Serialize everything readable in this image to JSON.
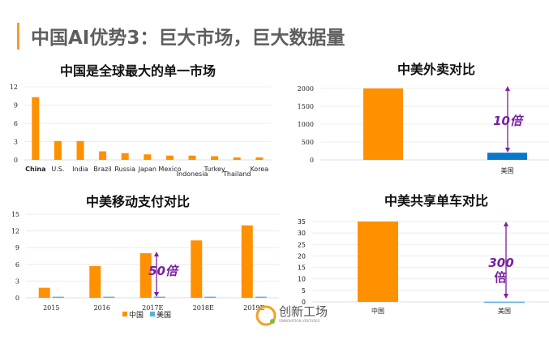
{
  "slide": {
    "title": "中国AI优势3：巨大市场，巨大数据量",
    "accent_color": "#f0a030"
  },
  "logo": {
    "name": "创新工场",
    "tagline": "SINNOVATION VENTURES"
  },
  "colors": {
    "china": "#ff9000",
    "us_dark": "#0a78c8",
    "us_light": "#5aaee0",
    "annotation": "#7a1fa2"
  },
  "chart_data": [
    {
      "type": "bar",
      "title": "中国是全球最大的单一市场",
      "categories": [
        "China",
        "U.S.",
        "India",
        "Brazil",
        "Russia",
        "Japan",
        "Mexico",
        "Indonesia",
        "Turkey",
        "Thailand",
        "Korea"
      ],
      "values": [
        10.3,
        3.1,
        3.1,
        1.4,
        1.1,
        0.9,
        0.7,
        0.7,
        0.6,
        0.4,
        0.4
      ],
      "yticks": [
        "0",
        "3",
        "6",
        "9",
        "12"
      ],
      "ylim": [
        0,
        12
      ],
      "grid": true
    },
    {
      "type": "bar",
      "title": "中美外卖对比",
      "categories": [
        "",
        "美国"
      ],
      "values": [
        2000,
        200
      ],
      "bar_colors": [
        "#ff9000",
        "#0a78c8"
      ],
      "yticks": [
        "0",
        "500",
        "1000",
        "1500",
        "2000"
      ],
      "ylim": [
        0,
        2000
      ],
      "grid": true,
      "annotation": [
        "10倍"
      ]
    },
    {
      "type": "bar",
      "title": "中美移动支付对比",
      "categories": [
        "2015",
        "2016",
        "2017E",
        "2018E",
        "2019E"
      ],
      "series": [
        {
          "name": "中国",
          "values": [
            1.8,
            5.7,
            8.0,
            10.3,
            13.0
          ]
        },
        {
          "name": "美国",
          "values": [
            0.2,
            0.2,
            0.2,
            0.2,
            0.2
          ]
        }
      ],
      "yticks": [
        "0",
        "3",
        "6",
        "9",
        "12",
        "15"
      ],
      "ylim": [
        0,
        15
      ],
      "grid": true,
      "legend": "bottom",
      "annotation": [
        "50倍"
      ]
    },
    {
      "type": "bar",
      "title": "中美共享单车对比",
      "categories": [
        "中国",
        "美国"
      ],
      "values": [
        35,
        0.1
      ],
      "bar_colors": [
        "#ff9000",
        "#5aaee0"
      ],
      "yticks": [
        "0",
        "5",
        "10",
        "15",
        "20",
        "25",
        "30",
        "35"
      ],
      "ylim": [
        0,
        35
      ],
      "grid": true,
      "annotation": [
        "300",
        "倍"
      ]
    }
  ]
}
